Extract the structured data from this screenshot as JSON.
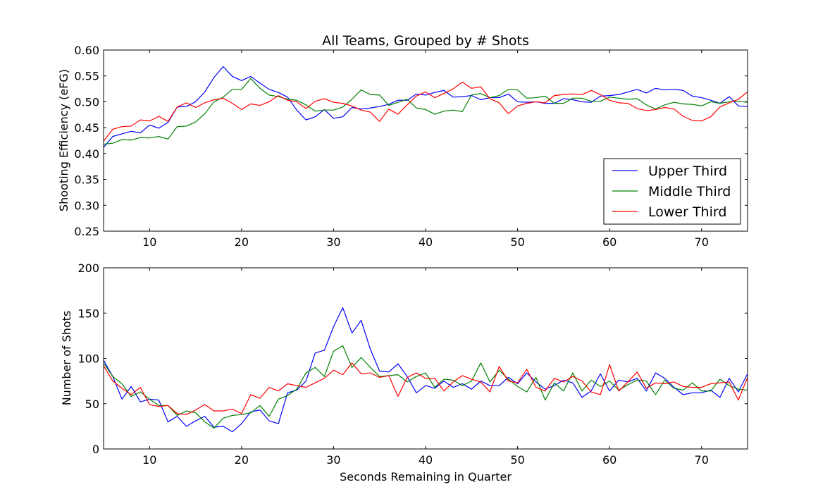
{
  "chart_data": [
    {
      "type": "line",
      "title": "All Teams, Grouped by # Shots",
      "xlabel": "",
      "ylabel": "Shooting Efficiency (eFG)",
      "xlim": [
        5,
        75
      ],
      "ylim": [
        0.25,
        0.6
      ],
      "xticks": [
        10,
        20,
        30,
        40,
        50,
        60,
        70
      ],
      "yticks": [
        0.25,
        0.3,
        0.35,
        0.4,
        0.45,
        0.5,
        0.55,
        0.6
      ],
      "ytick_labels": [
        "0.25",
        "0.30",
        "0.35",
        "0.40",
        "0.45",
        "0.50",
        "0.55",
        "0.60"
      ],
      "grid": false,
      "legend_placement": "lower-right",
      "x": [
        5,
        6,
        7,
        8,
        9,
        10,
        11,
        12,
        13,
        14,
        15,
        16,
        17,
        18,
        19,
        20,
        21,
        22,
        23,
        24,
        25,
        26,
        27,
        28,
        29,
        30,
        31,
        32,
        33,
        34,
        35,
        36,
        37,
        38,
        39,
        40,
        41,
        42,
        43,
        44,
        45,
        46,
        47,
        48,
        49,
        50,
        51,
        52,
        53,
        54,
        55,
        56,
        57,
        58,
        59,
        60,
        61,
        62,
        63,
        64,
        65,
        66,
        67,
        68,
        69,
        70,
        71,
        72,
        73,
        74,
        75
      ],
      "series": [
        {
          "name": "Upper Third",
          "color": "#0000ff",
          "values": [
            0.412,
            0.433,
            0.438,
            0.443,
            0.44,
            0.455,
            0.449,
            0.46,
            0.49,
            0.491,
            0.5,
            0.519,
            0.547,
            0.568,
            0.549,
            0.541,
            0.549,
            0.536,
            0.524,
            0.518,
            0.509,
            0.484,
            0.465,
            0.471,
            0.485,
            0.468,
            0.471,
            0.489,
            0.486,
            0.488,
            0.491,
            0.495,
            0.503,
            0.503,
            0.515,
            0.513,
            0.518,
            0.522,
            0.509,
            0.51,
            0.512,
            0.504,
            0.508,
            0.508,
            0.515,
            0.5,
            0.499,
            0.5,
            0.497,
            0.497,
            0.506,
            0.504,
            0.5,
            0.499,
            0.511,
            0.512,
            0.514,
            0.519,
            0.524,
            0.517,
            0.526,
            0.523,
            0.524,
            0.522,
            0.511,
            0.508,
            0.503,
            0.497,
            0.51,
            0.492,
            0.491
          ]
        },
        {
          "name": "Middle Third",
          "color": "#008000",
          "values": [
            0.418,
            0.42,
            0.427,
            0.426,
            0.431,
            0.43,
            0.433,
            0.428,
            0.452,
            0.453,
            0.461,
            0.477,
            0.5,
            0.509,
            0.524,
            0.524,
            0.545,
            0.526,
            0.513,
            0.51,
            0.505,
            0.503,
            0.494,
            0.482,
            0.484,
            0.484,
            0.49,
            0.505,
            0.523,
            0.514,
            0.513,
            0.493,
            0.499,
            0.505,
            0.488,
            0.485,
            0.476,
            0.482,
            0.484,
            0.481,
            0.513,
            0.516,
            0.508,
            0.512,
            0.524,
            0.523,
            0.507,
            0.508,
            0.511,
            0.497,
            0.497,
            0.507,
            0.507,
            0.501,
            0.501,
            0.509,
            0.507,
            0.505,
            0.506,
            0.494,
            0.486,
            0.494,
            0.499,
            0.496,
            0.495,
            0.492,
            0.5,
            0.497,
            0.5,
            0.501,
            0.499
          ]
        },
        {
          "name": "Lower Third",
          "color": "#ff0000",
          "values": [
            0.424,
            0.447,
            0.452,
            0.453,
            0.465,
            0.463,
            0.472,
            0.462,
            0.49,
            0.498,
            0.489,
            0.498,
            0.504,
            0.507,
            0.497,
            0.485,
            0.496,
            0.493,
            0.5,
            0.512,
            0.503,
            0.5,
            0.487,
            0.501,
            0.506,
            0.499,
            0.497,
            0.492,
            0.484,
            0.48,
            0.462,
            0.486,
            0.476,
            0.494,
            0.511,
            0.519,
            0.508,
            0.516,
            0.525,
            0.538,
            0.526,
            0.529,
            0.506,
            0.498,
            0.477,
            0.492,
            0.497,
            0.5,
            0.498,
            0.512,
            0.514,
            0.515,
            0.514,
            0.522,
            0.514,
            0.503,
            0.498,
            0.497,
            0.487,
            0.483,
            0.485,
            0.489,
            0.486,
            0.472,
            0.464,
            0.463,
            0.471,
            0.49,
            0.498,
            0.505,
            0.519
          ]
        }
      ]
    },
    {
      "type": "line",
      "title": "",
      "xlabel": "Seconds Remaining in Quarter",
      "ylabel": "Number of Shots",
      "xlim": [
        5,
        75
      ],
      "ylim": [
        0,
        200
      ],
      "xticks": [
        10,
        20,
        30,
        40,
        50,
        60,
        70
      ],
      "yticks": [
        0,
        50,
        100,
        150,
        200
      ],
      "ytick_labels": [
        "0",
        "50",
        "100",
        "150",
        "200"
      ],
      "grid": false,
      "x": [
        5,
        6,
        7,
        8,
        9,
        10,
        11,
        12,
        13,
        14,
        15,
        16,
        17,
        18,
        19,
        20,
        21,
        22,
        23,
        24,
        25,
        26,
        27,
        28,
        29,
        30,
        31,
        32,
        33,
        34,
        35,
        36,
        37,
        38,
        39,
        40,
        41,
        42,
        43,
        44,
        45,
        46,
        47,
        48,
        49,
        50,
        51,
        52,
        53,
        54,
        55,
        56,
        57,
        58,
        59,
        60,
        61,
        62,
        63,
        64,
        65,
        66,
        67,
        68,
        69,
        70,
        71,
        72,
        73,
        74,
        75
      ],
      "series": [
        {
          "name": "Upper Third",
          "color": "#0000ff",
          "values": [
            98,
            80,
            55,
            69,
            52,
            55,
            54,
            30,
            36,
            25,
            31,
            36,
            24,
            25,
            19,
            28,
            41,
            43,
            31,
            28,
            62,
            65,
            75,
            106,
            109,
            135,
            156,
            128,
            142,
            110,
            86,
            85,
            94,
            80,
            62,
            70,
            67,
            75,
            68,
            72,
            66,
            75,
            70,
            70,
            79,
            72,
            84,
            74,
            66,
            70,
            76,
            73,
            57,
            64,
            83,
            64,
            76,
            74,
            78,
            64,
            84,
            78,
            68,
            60,
            62,
            62,
            65,
            57,
            78,
            63,
            83
          ]
        },
        {
          "name": "Middle Third",
          "color": "#008000",
          "values": [
            95,
            80,
            72,
            58,
            63,
            55,
            48,
            48,
            37,
            42,
            40,
            30,
            23,
            34,
            37,
            38,
            40,
            48,
            36,
            55,
            59,
            66,
            84,
            90,
            80,
            108,
            114,
            90,
            101,
            90,
            80,
            81,
            82,
            74,
            80,
            84,
            68,
            77,
            76,
            70,
            75,
            95,
            74,
            87,
            77,
            69,
            63,
            79,
            54,
            73,
            64,
            84,
            64,
            76,
            69,
            75,
            65,
            71,
            76,
            75,
            60,
            76,
            67,
            65,
            73,
            64,
            64,
            77,
            70,
            66,
            65
          ]
        },
        {
          "name": "Lower Third",
          "color": "#ff0000",
          "values": [
            92,
            75,
            67,
            60,
            68,
            49,
            47,
            48,
            39,
            38,
            43,
            49,
            42,
            42,
            44,
            39,
            60,
            56,
            68,
            64,
            72,
            70,
            68,
            73,
            78,
            87,
            82,
            95,
            83,
            84,
            79,
            81,
            58,
            79,
            84,
            78,
            78,
            64,
            74,
            81,
            77,
            74,
            63,
            91,
            75,
            73,
            88,
            68,
            64,
            78,
            74,
            80,
            75,
            63,
            60,
            93,
            64,
            74,
            85,
            67,
            73,
            72,
            74,
            69,
            68,
            68,
            72,
            73,
            74,
            54,
            79
          ]
        }
      ]
    }
  ]
}
